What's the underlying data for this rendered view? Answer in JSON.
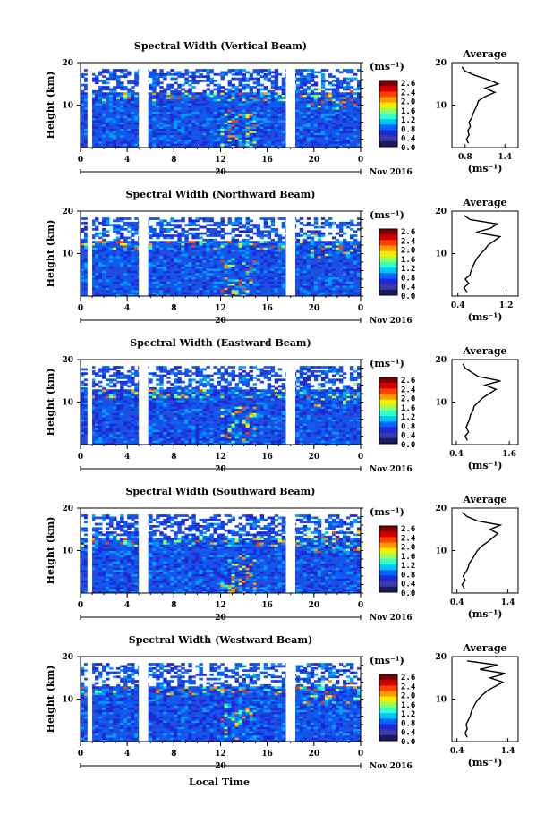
{
  "figure": {
    "xlabel": "Local Time",
    "date_day": "20",
    "date_month": "Nov 2016"
  },
  "colorbar": {
    "unit": "(ms⁻¹)",
    "ticks": [
      "2.6",
      "2.4",
      "2.0",
      "1.6",
      "1.2",
      "0.8",
      "0.4",
      "0.0"
    ],
    "colors": [
      "#7f0000",
      "#d40000",
      "#ff4000",
      "#ff9b00",
      "#f6ee00",
      "#96ff60",
      "#31ffc7",
      "#00c8ff",
      "#0064ff",
      "#1f2ad6",
      "#3a3aa8",
      "#1a1a60"
    ]
  },
  "colors": {
    "data_gap": "#ffffff",
    "background_field": "#1f4fe0",
    "axis": "#000000"
  },
  "chart_data": [
    {
      "type": "heatmap",
      "title": "Spectral Width (Vertical Beam)",
      "ylabel": "Height (km)",
      "xticks": [
        "0",
        "4",
        "8",
        "12",
        "16",
        "20",
        "0"
      ],
      "yticks": [
        "20",
        "10"
      ],
      "ylim": [
        0,
        20
      ],
      "xlim": [
        0,
        24
      ],
      "data_gaps_hours": [
        [
          0.6,
          1.0
        ],
        [
          5.0,
          5.8
        ],
        [
          17.6,
          18.4
        ]
      ],
      "profile": {
        "title": "Average",
        "xticks": [
          "0.8",
          "1.4"
        ],
        "yticks": [
          "20",
          "10"
        ],
        "xlim": [
          0.6,
          1.6
        ],
        "height_km": [
          1,
          2,
          3,
          4,
          5,
          6,
          7,
          8,
          9,
          10,
          11,
          12,
          13,
          14,
          15,
          16,
          17,
          18,
          19
        ],
        "width_ms": [
          0.85,
          0.82,
          0.86,
          0.84,
          0.88,
          0.86,
          0.9,
          0.92,
          0.95,
          0.98,
          1.0,
          1.1,
          1.25,
          1.1,
          1.3,
          1.15,
          0.95,
          0.8,
          0.75
        ]
      }
    },
    {
      "type": "heatmap",
      "title": "Spectral Width (Northward Beam)",
      "ylabel": "Height (km)",
      "xticks": [
        "0",
        "4",
        "8",
        "12",
        "16",
        "20",
        "0"
      ],
      "yticks": [
        "20",
        "10"
      ],
      "ylim": [
        0,
        20
      ],
      "xlim": [
        0,
        24
      ],
      "data_gaps_hours": [
        [
          0.6,
          1.0
        ],
        [
          5.0,
          5.8
        ],
        [
          17.6,
          18.4
        ]
      ],
      "profile": {
        "title": "Average",
        "xticks": [
          "0.4",
          "1.2"
        ],
        "yticks": [
          "20",
          "10"
        ],
        "xlim": [
          0.3,
          1.4
        ],
        "height_km": [
          1,
          2,
          3,
          4,
          5,
          6,
          7,
          8,
          9,
          10,
          11,
          12,
          13,
          14,
          15,
          16,
          17,
          18,
          19
        ],
        "width_ms": [
          0.55,
          0.5,
          0.58,
          0.52,
          0.6,
          0.62,
          0.65,
          0.68,
          0.72,
          0.78,
          0.85,
          0.9,
          1.0,
          1.1,
          0.7,
          0.95,
          1.05,
          0.6,
          0.5
        ]
      }
    },
    {
      "type": "heatmap",
      "title": "Spectral Width (Eastward Beam)",
      "ylabel": "Height (km)",
      "xticks": [
        "0",
        "4",
        "8",
        "12",
        "16",
        "20",
        "0"
      ],
      "yticks": [
        "20",
        "10"
      ],
      "ylim": [
        0,
        20
      ],
      "xlim": [
        0,
        24
      ],
      "data_gaps_hours": [
        [
          0.6,
          1.0
        ],
        [
          5.0,
          5.8
        ],
        [
          17.6,
          18.4
        ]
      ],
      "profile": {
        "title": "Average",
        "xticks": [
          "0.4",
          "1.6"
        ],
        "yticks": [
          "20",
          "10"
        ],
        "xlim": [
          0.3,
          1.8
        ],
        "height_km": [
          1,
          2,
          3,
          4,
          5,
          6,
          7,
          8,
          9,
          10,
          11,
          12,
          13,
          14,
          15,
          16,
          17,
          18,
          19
        ],
        "width_ms": [
          0.65,
          0.6,
          0.68,
          0.62,
          0.66,
          0.7,
          0.72,
          0.78,
          0.8,
          0.9,
          1.0,
          1.15,
          1.3,
          1.05,
          1.4,
          0.9,
          0.75,
          0.6,
          0.55
        ]
      }
    },
    {
      "type": "heatmap",
      "title": "Spectral Width (Southward Beam)",
      "ylabel": "Height (km)",
      "xticks": [
        "0",
        "4",
        "8",
        "12",
        "16",
        "20",
        "0"
      ],
      "yticks": [
        "20",
        "10"
      ],
      "ylim": [
        0,
        20
      ],
      "xlim": [
        0,
        24
      ],
      "data_gaps_hours": [
        [
          0.6,
          1.0
        ],
        [
          5.0,
          5.8
        ],
        [
          17.6,
          18.4
        ]
      ],
      "profile": {
        "title": "Average",
        "xticks": [
          "0.4",
          "1.4"
        ],
        "yticks": [
          "20",
          "10"
        ],
        "xlim": [
          0.3,
          1.6
        ],
        "height_km": [
          1,
          2,
          3,
          4,
          5,
          6,
          7,
          8,
          9,
          10,
          11,
          12,
          13,
          14,
          15,
          16,
          17,
          18,
          19
        ],
        "width_ms": [
          0.55,
          0.5,
          0.56,
          0.52,
          0.58,
          0.62,
          0.64,
          0.7,
          0.75,
          0.8,
          0.88,
          1.0,
          1.1,
          1.2,
          1.05,
          1.25,
          0.8,
          0.6,
          0.5
        ]
      }
    },
    {
      "type": "heatmap",
      "title": "Spectral Width (Westward Beam)",
      "ylabel": "Height (km)",
      "xticks": [
        "0",
        "4",
        "8",
        "12",
        "16",
        "20",
        "0"
      ],
      "yticks": [
        "20",
        "10"
      ],
      "ylim": [
        0,
        20
      ],
      "xlim": [
        0,
        24
      ],
      "data_gaps_hours": [
        [
          0.6,
          1.0
        ],
        [
          5.0,
          5.8
        ],
        [
          17.6,
          18.4
        ]
      ],
      "profile": {
        "title": "Average",
        "xticks": [
          "0.4",
          "1.4"
        ],
        "yticks": [
          "20",
          "10"
        ],
        "xlim": [
          0.3,
          1.6
        ],
        "height_km": [
          1,
          2,
          3,
          4,
          5,
          6,
          7,
          8,
          9,
          10,
          11,
          12,
          13,
          14,
          15,
          16,
          17,
          18,
          19
        ],
        "width_ms": [
          0.6,
          0.56,
          0.6,
          0.58,
          0.62,
          0.66,
          0.68,
          0.72,
          0.76,
          0.82,
          0.9,
          1.0,
          1.15,
          1.3,
          1.05,
          1.35,
          0.85,
          1.2,
          0.6
        ]
      }
    }
  ]
}
